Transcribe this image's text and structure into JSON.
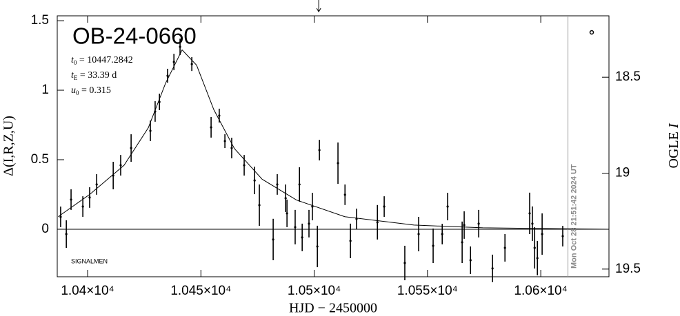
{
  "chart_data": {
    "type": "scatter",
    "title": "OB-24-0660",
    "params": [
      {
        "symbol": "t",
        "sub": "0",
        "rest": " = 10447.2842"
      },
      {
        "symbol": "t",
        "sub": "E",
        "rest": " = 33.39  d"
      },
      {
        "symbol": "u",
        "sub": "0",
        "rest": " = 0.315"
      }
    ],
    "source_label": "SIGNALMEN",
    "x_label": "HJD − 2450000",
    "y_label": "Δ(I,R,Z,U)",
    "y2_label": {
      "text": "OGLE ",
      "italic": "I"
    },
    "now_annotation": {
      "text": "Mon Oct 28 21:51:42 2024 UT",
      "x": 10612
    },
    "arrow_x": 10502,
    "xlim": [
      10386.6,
      10630.1
    ],
    "xticks": [
      {
        "value": 10400,
        "label": "1.04×10⁴"
      },
      {
        "value": 10450,
        "label": "1.045×10⁴"
      },
      {
        "value": 10500,
        "label": "1.05×10⁴"
      },
      {
        "value": 10550,
        "label": "1.055×10⁴"
      },
      {
        "value": 10600,
        "label": "1.06×10⁴"
      }
    ],
    "ylim": [
      -0.342,
      1.535
    ],
    "yticks": [
      0,
      0.5,
      1,
      1.5
    ],
    "y2lim": [
      19.54,
      18.18
    ],
    "y2ticks": [
      18.5,
      19,
      19.5
    ],
    "color": "#000000",
    "data": {
      "x": [
        10388.1,
        10390.6,
        10392.7,
        10397.9,
        10400.9,
        10404.0,
        10411.3,
        10414.6,
        10419.2,
        10427.7,
        10429.8,
        10431.7,
        10435.3,
        10438.1,
        10440.8,
        10446.0,
        10454.5,
        10458.1,
        10460.6,
        10463.6,
        10469.1,
        10473.7,
        10475.8,
        10481.9,
        10483.7,
        10487.4,
        10488.0,
        10491.6,
        10493.5,
        10494.7,
        10497.7,
        10499.2,
        10501.4,
        10502.3,
        10510.5,
        10513.6,
        10516.0,
        10518.7,
        10527.9,
        10530.9,
        10540.0,
        10546.1,
        10552.5,
        10556.5,
        10558.9,
        10565.3,
        10566.2,
        10569.0,
        10572.6,
        10578.7,
        10584.2,
        10595.1,
        10596.3,
        10597.3,
        10598.5,
        10600.6,
        10609.7
      ],
      "values": [
        0.089,
        -0.035,
        0.213,
        0.163,
        0.228,
        0.322,
        0.386,
        0.46,
        0.584,
        0.708,
        0.847,
        0.916,
        1.104,
        1.203,
        1.312,
        1.188,
        0.733,
        0.817,
        0.634,
        0.584,
        0.46,
        0.351,
        0.173,
        -0.074,
        0.322,
        0.223,
        0.114,
        0.015,
        0.322,
        -0.059,
        0.04,
        0.163,
        -0.124,
        0.569,
        0.475,
        0.248,
        -0.084,
        0.074,
        0.05,
        0.163,
        -0.243,
        -0.035,
        -0.119,
        -0.035,
        0.163,
        -0.094,
        0.03,
        -0.223,
        0.04,
        -0.282,
        -0.134,
        0.114,
        0.04,
        -0.134,
        -0.208,
        -0.035,
        -0.05
      ],
      "errors": [
        0.074,
        0.099,
        0.074,
        0.074,
        0.074,
        0.074,
        0.099,
        0.074,
        0.099,
        0.074,
        0.074,
        0.059,
        0.05,
        0.059,
        0.059,
        0.05,
        0.074,
        0.05,
        0.05,
        0.074,
        0.074,
        0.099,
        0.149,
        0.149,
        0.074,
        0.099,
        0.099,
        0.124,
        0.124,
        0.099,
        0.099,
        0.099,
        0.149,
        0.074,
        0.149,
        0.074,
        0.124,
        0.074,
        0.124,
        0.074,
        0.124,
        0.124,
        0.124,
        0.074,
        0.099,
        0.149,
        0.099,
        0.099,
        0.099,
        0.099,
        0.099,
        0.149,
        0.124,
        0.149,
        0.124,
        0.149,
        0.074
      ]
    },
    "model": {
      "x": [
        10387,
        10400.9,
        10416.1,
        10426.8,
        10434.4,
        10441.7,
        10448.1,
        10455.7,
        10464.8,
        10477.0,
        10492.2,
        10513.5,
        10544.0,
        10574.4,
        10630
      ],
      "values": [
        0.09,
        0.25,
        0.46,
        0.73,
        1.05,
        1.29,
        1.18,
        0.86,
        0.58,
        0.36,
        0.21,
        0.09,
        0.03,
        0.01,
        0
      ]
    }
  }
}
